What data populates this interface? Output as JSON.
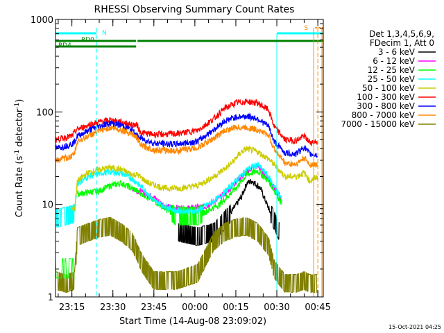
{
  "chart_data": {
    "type": "line",
    "title": "RHESSI Observing Summary Count Rates",
    "xlabel": "Start Time (14-Aug-08 23:09:02)",
    "ylabel_main": "Count Rate (s",
    "ylabel_sup": "-1",
    "ylabel_tail": " detector",
    "ylabel_end": ")",
    "yscale": "log",
    "ylim": [
      1,
      1000
    ],
    "xlim_minutes": [
      0,
      98
    ],
    "y_tick_labels": [
      "1",
      "10",
      "100",
      "1000"
    ],
    "x_tick_labels": [
      "23:15",
      "23:30",
      "23:45",
      "00:00",
      "00:15",
      "00:30",
      "00:45"
    ],
    "x_tick_minutes": [
      6,
      21,
      36,
      51,
      66,
      81,
      96
    ],
    "legend_header": [
      "Det 1,3,4,5,6,9,",
      "FDecim 1, Att 0"
    ],
    "legend_position": "right",
    "series": [
      {
        "name": "3 - 6 keV",
        "color": "#000000",
        "points": [
          [
            45,
            5
          ],
          [
            52,
            4.5
          ],
          [
            58,
            5
          ],
          [
            64,
            8
          ],
          [
            68,
            12
          ],
          [
            70,
            17
          ],
          [
            72,
            18
          ],
          [
            75,
            15
          ],
          [
            78,
            9
          ],
          [
            82,
            5
          ]
        ]
      },
      {
        "name": "6 - 12 keV",
        "color": "#ff00ff",
        "points": [
          [
            28,
            15
          ],
          [
            36,
            12
          ],
          [
            40,
            9.5
          ],
          [
            47,
            9
          ],
          [
            55,
            9.5
          ],
          [
            62,
            13
          ],
          [
            67,
            19
          ],
          [
            72,
            25
          ],
          [
            74,
            26
          ],
          [
            78,
            19
          ],
          [
            83,
            11
          ]
        ]
      },
      {
        "name": "12 - 25 keV",
        "color": "#00ff00",
        "points": [
          [
            8,
            13
          ],
          [
            16,
            14
          ],
          [
            20,
            16
          ],
          [
            24,
            17
          ],
          [
            28,
            15
          ],
          [
            36,
            11
          ],
          [
            44,
            7.5
          ],
          [
            52,
            7.5
          ],
          [
            60,
            10
          ],
          [
            66,
            15
          ],
          [
            70,
            21
          ],
          [
            74,
            23
          ],
          [
            78,
            18
          ],
          [
            83,
            10
          ]
        ]
      },
      {
        "name": "25 - 50 keV",
        "color": "#00ffff",
        "points": [
          [
            0,
            7
          ],
          [
            4,
            7.5
          ],
          [
            7,
            8
          ],
          [
            8,
            17
          ],
          [
            12,
            20
          ],
          [
            17,
            22
          ],
          [
            20,
            22.5
          ],
          [
            24,
            22
          ],
          [
            28,
            19
          ],
          [
            32,
            15
          ],
          [
            36,
            11
          ],
          [
            44,
            8.5
          ],
          [
            52,
            8.5
          ],
          [
            60,
            12
          ],
          [
            66,
            18
          ],
          [
            70,
            24
          ],
          [
            74,
            27
          ],
          [
            78,
            20
          ],
          [
            83,
            11
          ]
        ]
      },
      {
        "name": "50 - 100 keV",
        "color": "#cccc00",
        "points": [
          [
            6,
            9
          ],
          [
            7,
            9
          ],
          [
            8,
            18
          ],
          [
            12,
            22
          ],
          [
            16,
            24
          ],
          [
            20,
            25
          ],
          [
            24,
            24
          ],
          [
            28,
            21
          ],
          [
            30,
            21
          ],
          [
            34,
            17
          ],
          [
            40,
            15
          ],
          [
            46,
            15
          ],
          [
            52,
            16
          ],
          [
            58,
            20
          ],
          [
            64,
            27
          ],
          [
            68,
            37
          ],
          [
            70,
            40
          ],
          [
            74,
            37
          ],
          [
            78,
            31
          ],
          [
            80,
            27
          ],
          [
            84,
            20
          ],
          [
            88,
            20
          ],
          [
            91,
            22
          ],
          [
            93,
            18
          ],
          [
            96,
            20
          ]
        ]
      },
      {
        "name": "100 - 300 keV",
        "color": "#ff0000",
        "points": [
          [
            0,
            50
          ],
          [
            6,
            55
          ],
          [
            7,
            60
          ],
          [
            8,
            65
          ],
          [
            12,
            72
          ],
          [
            16,
            78
          ],
          [
            20,
            82
          ],
          [
            24,
            78
          ],
          [
            28,
            73
          ],
          [
            30,
            72
          ],
          [
            31,
            60
          ],
          [
            36,
            57
          ],
          [
            44,
            58
          ],
          [
            52,
            63
          ],
          [
            58,
            85
          ],
          [
            62,
            110
          ],
          [
            66,
            125
          ],
          [
            70,
            130
          ],
          [
            74,
            125
          ],
          [
            78,
            105
          ],
          [
            80,
            70
          ],
          [
            84,
            50
          ],
          [
            88,
            49
          ],
          [
            91,
            55
          ],
          [
            93,
            47
          ],
          [
            96,
            48
          ]
        ]
      },
      {
        "name": "300 - 800 keV",
        "color": "#0000ff",
        "points": [
          [
            0,
            40
          ],
          [
            6,
            45
          ],
          [
            7,
            48
          ],
          [
            8,
            55
          ],
          [
            12,
            63
          ],
          [
            16,
            70
          ],
          [
            20,
            76
          ],
          [
            24,
            72
          ],
          [
            28,
            64
          ],
          [
            30,
            55
          ],
          [
            31,
            52
          ],
          [
            36,
            46
          ],
          [
            44,
            45
          ],
          [
            52,
            48
          ],
          [
            58,
            65
          ],
          [
            62,
            80
          ],
          [
            66,
            88
          ],
          [
            70,
            90
          ],
          [
            74,
            85
          ],
          [
            78,
            70
          ],
          [
            80,
            48
          ],
          [
            84,
            36
          ],
          [
            88,
            35
          ],
          [
            91,
            42
          ],
          [
            93,
            35
          ],
          [
            96,
            34
          ]
        ]
      },
      {
        "name": "800 - 7000 keV",
        "color": "#ff8800",
        "points": [
          [
            0,
            30
          ],
          [
            6,
            33
          ],
          [
            7,
            36
          ],
          [
            8,
            48
          ],
          [
            12,
            55
          ],
          [
            16,
            62
          ],
          [
            20,
            68
          ],
          [
            24,
            64
          ],
          [
            28,
            58
          ],
          [
            30,
            52
          ],
          [
            31,
            44
          ],
          [
            36,
            39
          ],
          [
            44,
            38
          ],
          [
            52,
            41
          ],
          [
            58,
            52
          ],
          [
            62,
            63
          ],
          [
            66,
            68
          ],
          [
            70,
            68
          ],
          [
            74,
            64
          ],
          [
            78,
            56
          ],
          [
            80,
            40
          ],
          [
            84,
            28
          ],
          [
            88,
            27
          ],
          [
            91,
            32
          ],
          [
            93,
            27
          ],
          [
            96,
            27
          ]
        ]
      },
      {
        "name": "7000 - 15000 keV",
        "color": "#808000",
        "points": [
          [
            0,
            1.5
          ],
          [
            4,
            1.4
          ],
          [
            7,
            1.5
          ],
          [
            8,
            4.5
          ],
          [
            12,
            5
          ],
          [
            16,
            5.5
          ],
          [
            20,
            5.8
          ],
          [
            24,
            5
          ],
          [
            28,
            4
          ],
          [
            30,
            3
          ],
          [
            31,
            2.5
          ],
          [
            36,
            1.5
          ],
          [
            44,
            1.5
          ],
          [
            52,
            1.8
          ],
          [
            58,
            4
          ],
          [
            62,
            5
          ],
          [
            66,
            5.6
          ],
          [
            70,
            5.8
          ],
          [
            74,
            5
          ],
          [
            78,
            3.5
          ],
          [
            80,
            2
          ],
          [
            84,
            1.4
          ],
          [
            88,
            1.4
          ],
          [
            91,
            1.5
          ],
          [
            93,
            1.4
          ],
          [
            96,
            1.4
          ]
        ]
      }
    ],
    "extra_lines": {
      "att_green_start": {
        "color": "#00ff00",
        "points": [
          [
            0,
            2.6
          ],
          [
            7,
            2.5
          ]
        ]
      },
      "att_green_bars": "minutes 0-7 near 2.5"
    },
    "flags": {
      "rd0_label": "RD0",
      "rd4_label": "RD4",
      "n_label": "N",
      "s_label": "S",
      "cyan_upper_label_minutes": [
        [
          0,
          15
        ],
        [
          81,
          98
        ]
      ],
      "rd0_minutes": [
        [
          0,
          29.5
        ],
        [
          30,
          98
        ]
      ],
      "rd4_minutes": [
        [
          0,
          29.5
        ]
      ]
    },
    "footer_timestamp": "15-Oct-2021 04:25"
  }
}
